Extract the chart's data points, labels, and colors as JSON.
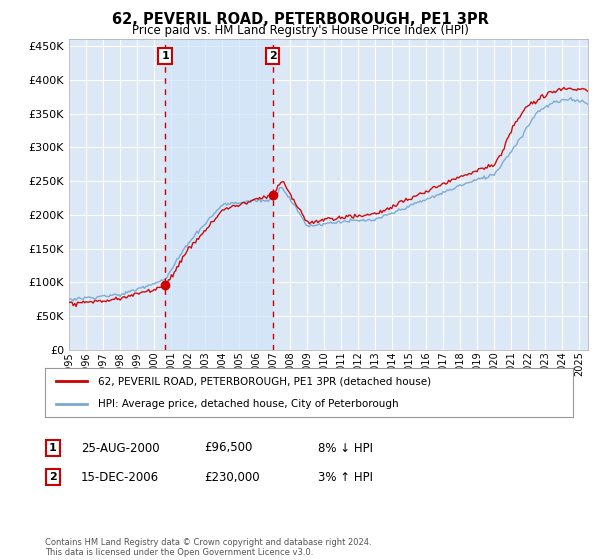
{
  "title": "62, PEVERIL ROAD, PETERBOROUGH, PE1 3PR",
  "subtitle": "Price paid vs. HM Land Registry's House Price Index (HPI)",
  "legend_line1": "62, PEVERIL ROAD, PETERBOROUGH, PE1 3PR (detached house)",
  "legend_line2": "HPI: Average price, detached house, City of Peterborough",
  "footnote": "Contains HM Land Registry data © Crown copyright and database right 2024.\nThis data is licensed under the Open Government Licence v3.0.",
  "purchase1_date": "25-AUG-2000",
  "purchase1_price": 96500,
  "purchase1_hpi": "8% ↓ HPI",
  "purchase1_year": 2000.65,
  "purchase2_date": "15-DEC-2006",
  "purchase2_price": 230000,
  "purchase2_hpi": "3% ↑ HPI",
  "purchase2_year": 2006.96,
  "color_red": "#cc0000",
  "color_blue": "#7aa8d2",
  "color_grid": "#cccccc",
  "color_bg_plot": "#dce8f5",
  "color_shade": "#d0e4f7",
  "ylim": [
    0,
    460000
  ],
  "xlim_start": 1995,
  "xlim_end": 2025.5
}
